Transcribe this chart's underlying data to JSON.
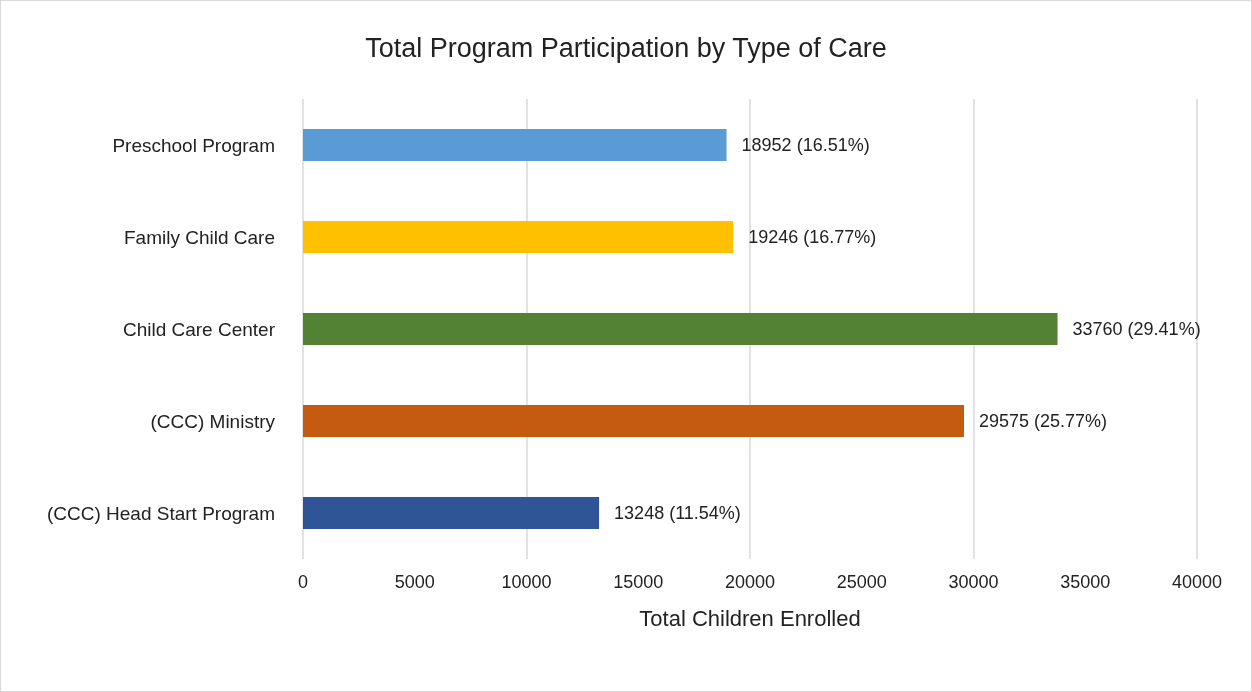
{
  "chart_data": {
    "type": "bar",
    "orientation": "horizontal",
    "title": "Total Program Participation by Type of Care",
    "xlabel": "Total Children Enrolled",
    "categories": [
      "Preschool Program",
      "Family Child Care",
      "Child Care Center",
      "(CCC) Ministry",
      "(CCC) Head Start Program"
    ],
    "values": [
      18952,
      19246,
      33760,
      29575,
      13248
    ],
    "colors": [
      "#5b9bd5",
      "#ffc000",
      "#548235",
      "#c55a11",
      "#2f5597"
    ],
    "value_labels": [
      "18952 (16.51%)",
      "19246 (16.77%)",
      "33760 (29.41%)",
      "29575 (25.77%)",
      "13248 (11.54%)"
    ],
    "xlim": [
      0,
      40000
    ],
    "xticks": [
      0,
      5000,
      10000,
      15000,
      20000,
      25000,
      30000,
      35000,
      40000
    ],
    "grid": "x"
  }
}
